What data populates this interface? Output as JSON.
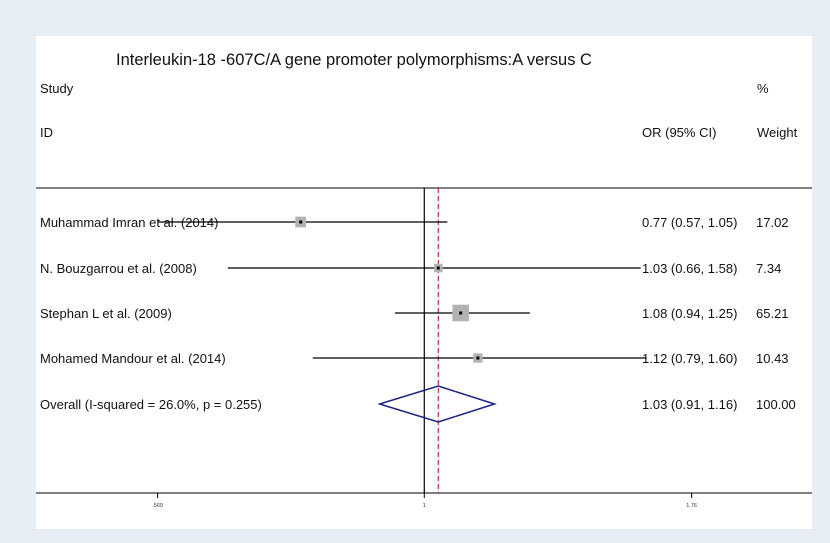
{
  "chart_data": {
    "type": "forest",
    "title": "Interleukin-18 -607C/A gene promoter polymorphisms:A versus C",
    "header": {
      "study_line1": "Study",
      "study_line2": "ID",
      "or_label": "OR (95% CI)",
      "weight_line1": "%",
      "weight_line2": "Weight"
    },
    "studies": [
      {
        "name": "Muhammad Imran et al. (2014)",
        "or": 0.77,
        "lower": 0.57,
        "upper": 1.05,
        "weight": 17.02,
        "or_text": "0.77 (0.57, 1.05)",
        "weight_text": "17.02"
      },
      {
        "name": "N. Bouzgarrou et al. (2008)",
        "or": 1.03,
        "lower": 0.66,
        "upper": 1.58,
        "weight": 7.34,
        "or_text": "1.03 (0.66, 1.58)",
        "weight_text": "7.34"
      },
      {
        "name": "Stephan L et al. (2009)",
        "or": 1.08,
        "lower": 0.94,
        "upper": 1.25,
        "weight": 65.21,
        "or_text": "1.08 (0.94, 1.25)",
        "weight_text": "65.21"
      },
      {
        "name": "Mohamed Mandour et al. (2014)",
        "or": 1.12,
        "lower": 0.79,
        "upper": 1.6,
        "weight": 10.43,
        "or_text": "1.12 (0.79, 1.60)",
        "weight_text": "10.43"
      }
    ],
    "overall": {
      "name": "Overall  (I-squared = 26.0%, p = 0.255)",
      "or": 1.03,
      "lower": 0.91,
      "upper": 1.16,
      "or_text": "1.03 (0.91, 1.16)",
      "weight_text": "100.00"
    },
    "x_axis": {
      "scale": "log",
      "null_value": 1,
      "lim": [
        0.44,
        2.27
      ],
      "ticks": [
        {
          "value": 0.569,
          "label": ".569"
        },
        {
          "value": 1,
          "label": "1"
        },
        {
          "value": 1.76,
          "label": "1.76"
        }
      ]
    },
    "colors": {
      "ci_line": "#000000",
      "weight_box": "#b3b3b3",
      "overall_diamond": "#1a237e",
      "pooled_line": "#cc0000",
      "null_line": "#000000"
    }
  }
}
